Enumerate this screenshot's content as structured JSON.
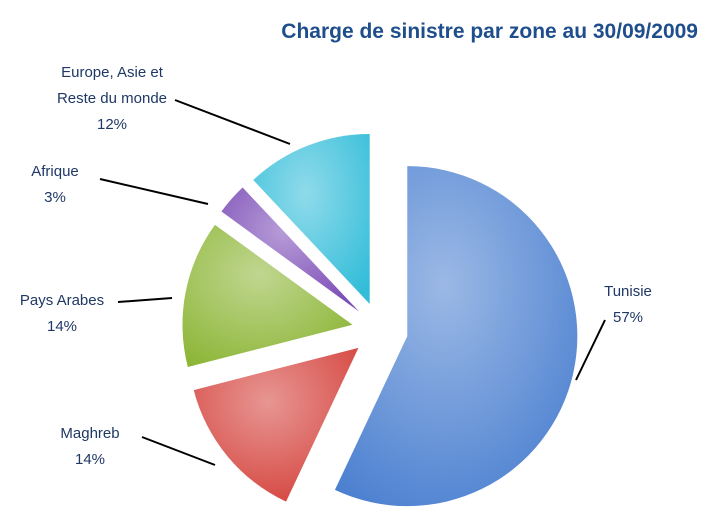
{
  "chart_data": {
    "type": "pie",
    "title": "Charge de sinistre par zone au 30/09/2009",
    "categories": [
      "Tunisie",
      "Maghreb",
      "Pays Arabes",
      "Afrique",
      "Europe, Asie et Reste du monde"
    ],
    "values": [
      57,
      14,
      14,
      3,
      12
    ],
    "value_labels": [
      "57%",
      "14%",
      "14%",
      "3%",
      "12%"
    ],
    "colors": [
      "#4a7fd0",
      "#d4403a",
      "#8cb535",
      "#7a4ab6",
      "#33bdd9"
    ]
  }
}
